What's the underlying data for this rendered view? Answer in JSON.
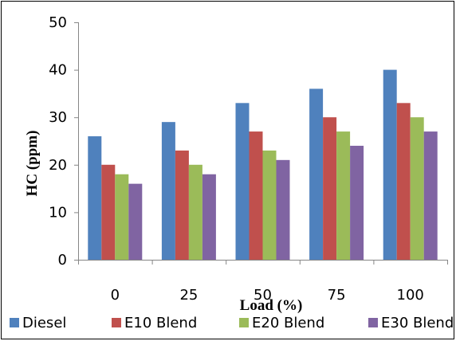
{
  "chart_data": {
    "type": "bar",
    "xlabel": "Load (%)",
    "ylabel": "HC (ppm)",
    "categories": [
      "0",
      "25",
      "50",
      "75",
      "100"
    ],
    "ylim": [
      0,
      50
    ],
    "yticks": [
      0,
      10,
      20,
      30,
      40,
      50
    ],
    "grid": false,
    "legend_position": "bottom",
    "series": [
      {
        "name": "Diesel",
        "color": "#4F81BD",
        "values": [
          26,
          29,
          33,
          36,
          40
        ]
      },
      {
        "name": "E10 Blend",
        "color": "#C0504D",
        "values": [
          20,
          23,
          27,
          30,
          33
        ]
      },
      {
        "name": "E20 Blend",
        "color": "#9BBB59",
        "values": [
          18,
          20,
          23,
          27,
          30
        ]
      },
      {
        "name": "E30 Blend",
        "color": "#8064A2",
        "values": [
          16,
          18,
          21,
          24,
          27
        ]
      }
    ]
  }
}
